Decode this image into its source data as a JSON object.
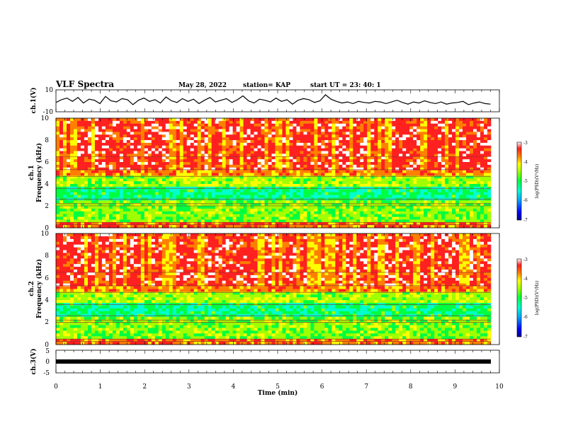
{
  "header": {
    "title": "VLF Spectra",
    "date": "May 28, 2022",
    "station": "station= KAP",
    "start": "start  UT =   23: 40: 1"
  },
  "chart_data": [
    {
      "type": "line",
      "name": "ch1-waveform",
      "ylabel": "ch.1(V)",
      "ylim": [
        -10,
        10
      ],
      "yticks": [
        "10",
        "-10"
      ],
      "xlim": [
        0,
        10
      ],
      "trace": [
        -1.5,
        1.0,
        2.5,
        -0.5,
        3.0,
        -2.0,
        1.5,
        0.5,
        -2.5,
        4.0,
        0.0,
        -1.0,
        2.0,
        1.0,
        -3.5,
        0.5,
        2.5,
        -0.5,
        1.0,
        -2.0,
        3.5,
        0.0,
        -1.5,
        2.0,
        -0.5,
        1.5,
        -2.5,
        0.5,
        3.0,
        -1.0,
        0.5,
        2.0,
        -1.5,
        1.0,
        4.5,
        0.0,
        -2.0,
        1.5,
        0.5,
        -1.0,
        2.5,
        -0.5,
        1.0,
        -3.0,
        0.5,
        2.0,
        1.0,
        -1.5,
        0.0,
        5.5,
        1.5,
        -0.5,
        -2.0,
        -1.0,
        -2.5,
        -0.5,
        -1.5,
        -2.0,
        -0.5,
        -1.0,
        -2.5,
        -1.0,
        0.5,
        -1.5,
        -3.0,
        -1.0,
        -2.0,
        0.0,
        -1.5,
        -2.5,
        -1.0,
        -3.0,
        -2.0,
        -1.5,
        -0.5,
        -3.5,
        -2.0,
        -1.0,
        -2.5,
        -3.0
      ]
    },
    {
      "type": "heatmap",
      "name": "ch1-spectrogram",
      "ylabel_line1": "ch.1",
      "ylabel_line2": "Frequency (kHz)",
      "ylim": [
        0,
        10
      ],
      "yticks": [
        "0",
        "2",
        "4",
        "6",
        "8",
        "10"
      ],
      "xlim": [
        0,
        10
      ],
      "colorbar": {
        "label": "log(PSD)(V²/Hz)",
        "range": [
          -7,
          -3
        ],
        "ticks": [
          "-3",
          "-4",
          "-5",
          "-6",
          "-7"
        ]
      }
    },
    {
      "type": "heatmap",
      "name": "ch2-spectrogram",
      "ylabel_line1": "ch.2",
      "ylabel_line2": "Frequency (kHz)",
      "ylim": [
        0,
        10
      ],
      "yticks": [
        "0",
        "2",
        "4",
        "6",
        "8",
        "10"
      ],
      "xlim": [
        0,
        10
      ],
      "colorbar": {
        "label": "log(PSD)(V²/Hz)",
        "range": [
          -7,
          -3
        ],
        "ticks": [
          "-3",
          "-4",
          "-5",
          "-6",
          "-7"
        ]
      }
    },
    {
      "type": "line",
      "name": "ch3-waveform",
      "ylabel": "ch.3(V)",
      "ylim": [
        -5,
        5
      ],
      "yticks": [
        "5",
        "0",
        "-5"
      ],
      "xlim": [
        0,
        9.8
      ],
      "level": -1.0
    }
  ],
  "x_axis": {
    "label": "Time (min)",
    "ticks": [
      "0",
      "1",
      "2",
      "3",
      "4",
      "5",
      "6",
      "7",
      "8",
      "9",
      "10"
    ]
  },
  "colors": {
    "trace": "#000000",
    "colormap": [
      "#000090",
      "#0000ff",
      "#00a0ff",
      "#00ffd0",
      "#00ff40",
      "#a0ff00",
      "#ffff00",
      "#ff8000",
      "#ff2020",
      "#ffffff"
    ]
  }
}
